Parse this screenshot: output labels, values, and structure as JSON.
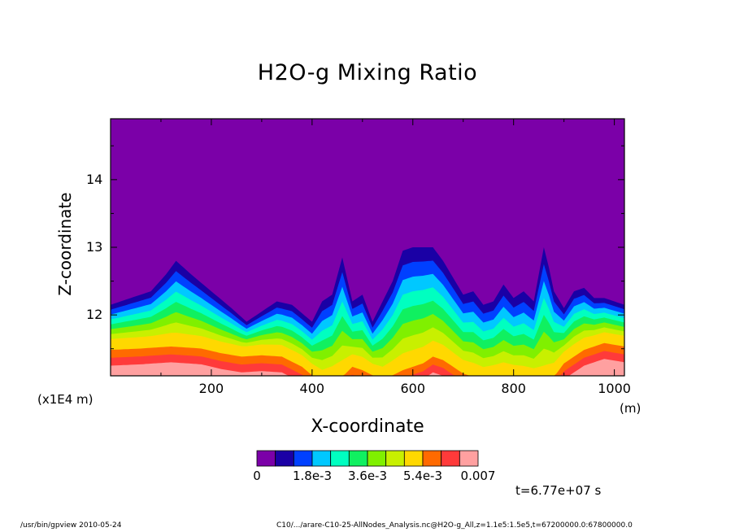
{
  "title": "H2O-g Mixing Ratio",
  "chart_data": {
    "type": "heatmap",
    "title": "H2O-g Mixing Ratio",
    "xlabel": "X-coordinate",
    "ylabel": "Z-coordinate",
    "x_unit": "(m)",
    "y_unit": "(x1E4 m)",
    "xlim": [
      0,
      1020
    ],
    "ylim": [
      11.1,
      14.9
    ],
    "x_ticks": [
      200,
      400,
      600,
      800,
      1000
    ],
    "y_ticks": [
      12,
      13,
      14
    ],
    "x_tick_labels": [
      "200",
      "400",
      "600",
      "800",
      "1000"
    ],
    "y_tick_labels": [
      "12",
      "13",
      "14"
    ],
    "colorbar": {
      "colors": [
        "#7b00a8",
        "#1a00a5",
        "#0040ff",
        "#00c8ff",
        "#00ffc0",
        "#10f060",
        "#80f000",
        "#c8f000",
        "#ffd800",
        "#ff6a00",
        "#ff3a3a",
        "#ffa0a0"
      ],
      "labels": [
        "0",
        "1.8e-3",
        "3.6e-3",
        "5.4e-3",
        "0.007"
      ],
      "min": 0,
      "max": 0.007
    },
    "time_label": "t=6.77e+07 s",
    "contour_tops_z": {
      "x": [
        0,
        40,
        80,
        110,
        130,
        160,
        200,
        240,
        270,
        300,
        330,
        360,
        400,
        420,
        440,
        460,
        480,
        500,
        520,
        540,
        560,
        580,
        600,
        620,
        640,
        660,
        680,
        700,
        720,
        740,
        760,
        780,
        800,
        820,
        840,
        860,
        870,
        880,
        900,
        920,
        940,
        960,
        980,
        1000,
        1020
      ],
      "z": [
        12.15,
        12.25,
        12.35,
        12.6,
        12.8,
        12.6,
        12.35,
        12.1,
        11.9,
        12.05,
        12.2,
        12.15,
        11.9,
        12.2,
        12.3,
        12.85,
        12.2,
        12.3,
        11.9,
        12.2,
        12.5,
        12.95,
        13.0,
        13.0,
        13.0,
        12.8,
        12.55,
        12.3,
        12.35,
        12.15,
        12.2,
        12.45,
        12.25,
        12.35,
        12.2,
        13.0,
        12.7,
        12.35,
        12.1,
        12.35,
        12.4,
        12.25,
        12.25,
        12.2,
        12.15
      ]
    },
    "warm_layer_top_z": {
      "x": [
        0,
        60,
        120,
        180,
        220,
        260,
        300,
        340,
        380,
        420,
        440,
        460,
        480,
        500,
        540,
        580,
        620,
        640,
        660,
        700,
        740,
        780,
        820,
        860,
        880,
        900,
        940,
        980,
        1020
      ],
      "z": [
        11.6,
        11.62,
        11.65,
        11.62,
        11.55,
        11.5,
        11.52,
        11.5,
        11.35,
        11.1,
        11.15,
        11.2,
        11.35,
        11.3,
        11.15,
        11.3,
        11.4,
        11.5,
        11.45,
        11.25,
        11.15,
        11.2,
        11.15,
        11.1,
        11.2,
        11.4,
        11.6,
        11.7,
        11.65
      ]
    }
  },
  "footer": {
    "left": "/usr/bin/gpview  2010-05-24",
    "right": "C10/.../arare-C10-25-AllNodes_Analysis.nc@H2O-g_All,z=1.1e5:1.5e5,t=67200000.0:67800000.0"
  }
}
